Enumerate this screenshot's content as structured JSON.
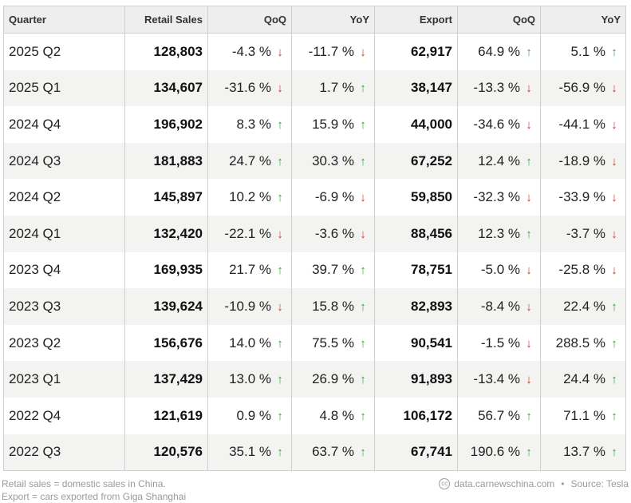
{
  "headers": [
    "Quarter",
    "Retail Sales",
    "QoQ",
    "YoY",
    "Export",
    "QoQ",
    "YoY"
  ],
  "rows": [
    {
      "quarter": "2025 Q2",
      "retail": "128,803",
      "r_qoq": "-4.3 %",
      "r_qoq_dir": "down",
      "r_yoy": "-11.7 %",
      "r_yoy_dir": "down",
      "export": "62,917",
      "e_qoq": "64.9 %",
      "e_qoq_dir": "up",
      "e_yoy": "5.1 %",
      "e_yoy_dir": "up"
    },
    {
      "quarter": "2025 Q1",
      "retail": "134,607",
      "r_qoq": "-31.6 %",
      "r_qoq_dir": "down",
      "r_yoy": "1.7 %",
      "r_yoy_dir": "up",
      "export": "38,147",
      "e_qoq": "-13.3 %",
      "e_qoq_dir": "down",
      "e_yoy": "-56.9 %",
      "e_yoy_dir": "down"
    },
    {
      "quarter": "2024 Q4",
      "retail": "196,902",
      "r_qoq": "8.3 %",
      "r_qoq_dir": "up",
      "r_yoy": "15.9 %",
      "r_yoy_dir": "up",
      "export": "44,000",
      "e_qoq": "-34.6 %",
      "e_qoq_dir": "down",
      "e_yoy": "-44.1 %",
      "e_yoy_dir": "down"
    },
    {
      "quarter": "2024 Q3",
      "retail": "181,883",
      "r_qoq": "24.7 %",
      "r_qoq_dir": "up",
      "r_yoy": "30.3 %",
      "r_yoy_dir": "up",
      "export": "67,252",
      "e_qoq": "12.4 %",
      "e_qoq_dir": "up",
      "e_yoy": "-18.9 %",
      "e_yoy_dir": "down"
    },
    {
      "quarter": "2024 Q2",
      "retail": "145,897",
      "r_qoq": "10.2 %",
      "r_qoq_dir": "up",
      "r_yoy": "-6.9 %",
      "r_yoy_dir": "down",
      "export": "59,850",
      "e_qoq": "-32.3 %",
      "e_qoq_dir": "down",
      "e_yoy": "-33.9 %",
      "e_yoy_dir": "down"
    },
    {
      "quarter": "2024 Q1",
      "retail": "132,420",
      "r_qoq": "-22.1 %",
      "r_qoq_dir": "down",
      "r_yoy": "-3.6 %",
      "r_yoy_dir": "down",
      "export": "88,456",
      "e_qoq": "12.3 %",
      "e_qoq_dir": "up",
      "e_yoy": "-3.7 %",
      "e_yoy_dir": "down"
    },
    {
      "quarter": "2023 Q4",
      "retail": "169,935",
      "r_qoq": "21.7 %",
      "r_qoq_dir": "up",
      "r_yoy": "39.7 %",
      "r_yoy_dir": "up",
      "export": "78,751",
      "e_qoq": "-5.0 %",
      "e_qoq_dir": "down",
      "e_yoy": "-25.8 %",
      "e_yoy_dir": "down"
    },
    {
      "quarter": "2023 Q3",
      "retail": "139,624",
      "r_qoq": "-10.9 %",
      "r_qoq_dir": "down",
      "r_yoy": "15.8 %",
      "r_yoy_dir": "up",
      "export": "82,893",
      "e_qoq": "-8.4 %",
      "e_qoq_dir": "down",
      "e_yoy": "22.4 %",
      "e_yoy_dir": "up"
    },
    {
      "quarter": "2023 Q2",
      "retail": "156,676",
      "r_qoq": "14.0 %",
      "r_qoq_dir": "up",
      "r_yoy": "75.5 %",
      "r_yoy_dir": "up",
      "export": "90,541",
      "e_qoq": "-1.5 %",
      "e_qoq_dir": "down",
      "e_yoy": "288.5 %",
      "e_yoy_dir": "up"
    },
    {
      "quarter": "2023 Q1",
      "retail": "137,429",
      "r_qoq": "13.0 %",
      "r_qoq_dir": "up",
      "r_yoy": "26.9 %",
      "r_yoy_dir": "up",
      "export": "91,893",
      "e_qoq": "-13.4 %",
      "e_qoq_dir": "down",
      "e_yoy": "24.4 %",
      "e_yoy_dir": "up"
    },
    {
      "quarter": "2022 Q4",
      "retail": "121,619",
      "r_qoq": "0.9 %",
      "r_qoq_dir": "up",
      "r_yoy": "4.8 %",
      "r_yoy_dir": "up",
      "export": "106,172",
      "e_qoq": "56.7 %",
      "e_qoq_dir": "up",
      "e_yoy": "71.1 %",
      "e_yoy_dir": "up"
    },
    {
      "quarter": "2022 Q3",
      "retail": "120,576",
      "r_qoq": "35.1 %",
      "r_qoq_dir": "up",
      "r_yoy": "63.7 %",
      "r_yoy_dir": "up",
      "export": "67,741",
      "e_qoq": "190.6 %",
      "e_qoq_dir": "up",
      "e_yoy": "13.7 %",
      "e_yoy_dir": "up"
    }
  ],
  "arrows": {
    "up": "↑",
    "down": "↓"
  },
  "colors": {
    "up": "#3aa53a",
    "down": "#d33a2f",
    "header_bg": "#eeeeee",
    "stripe_bg": "#f3f3f1"
  },
  "footer": {
    "note1": "Retail sales = domestic sales in China.",
    "note2": "Export = cars exported from Giga Shanghai",
    "attribution": "data.carnewschina.com",
    "source": "Source: Tesla",
    "separator": "•"
  }
}
